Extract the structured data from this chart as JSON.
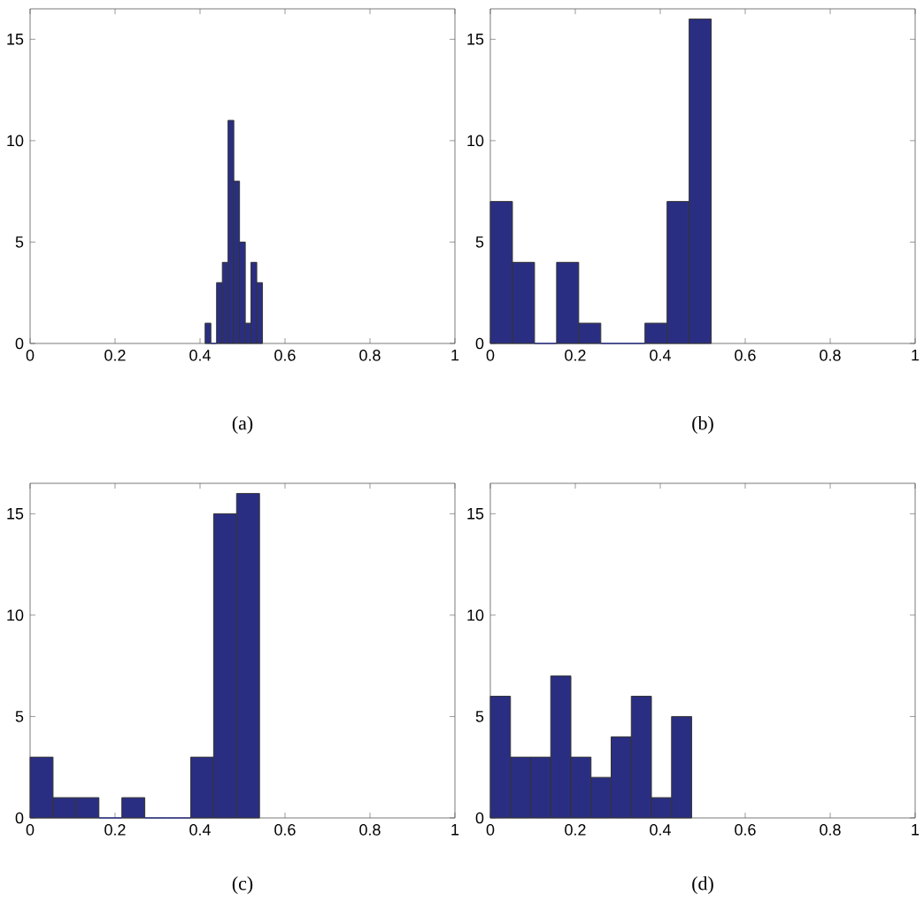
{
  "chart_data": [
    {
      "type": "histogram",
      "bins": [
        0.412,
        0.4255,
        0.439,
        0.4525,
        0.466,
        0.4795,
        0.493,
        0.5065,
        0.52,
        0.5335,
        0.547
      ],
      "values": [
        1,
        0,
        3,
        4,
        11,
        8,
        5,
        1,
        4,
        3
      ],
      "color": "#2a2e82",
      "xlim": [
        0,
        1
      ],
      "ylim": [
        0,
        16.5
      ],
      "xticks": [
        0,
        0.2,
        0.4,
        0.6,
        0.8,
        1
      ],
      "yticks": [
        0,
        5,
        10,
        15
      ],
      "annotations": [
        "(a)"
      ]
    },
    {
      "type": "histogram",
      "bins": [
        0,
        0.052,
        0.104,
        0.156,
        0.208,
        0.26,
        0.312,
        0.364,
        0.416,
        0.468,
        0.52
      ],
      "values": [
        7,
        4,
        0,
        4,
        1,
        0,
        0,
        1,
        7,
        16
      ],
      "color": "#2a2e82",
      "xlim": [
        0,
        1
      ],
      "ylim": [
        0,
        16.5
      ],
      "xticks": [
        0,
        0.2,
        0.4,
        0.6,
        0.8,
        1
      ],
      "yticks": [
        0,
        5,
        10,
        15
      ],
      "annotations": [
        "(b)"
      ]
    },
    {
      "type": "histogram",
      "bins": [
        0,
        0.054,
        0.108,
        0.162,
        0.216,
        0.27,
        0.324,
        0.378,
        0.432,
        0.486,
        0.54
      ],
      "values": [
        3,
        1,
        1,
        0,
        1,
        0,
        0,
        3,
        15,
        16
      ],
      "color": "#2a2e82",
      "xlim": [
        0,
        1
      ],
      "ylim": [
        0,
        16.5
      ],
      "xticks": [
        0,
        0.2,
        0.4,
        0.6,
        0.8,
        1
      ],
      "yticks": [
        0,
        5,
        10,
        15
      ],
      "annotations": [
        "(c)"
      ]
    },
    {
      "type": "histogram",
      "bins": [
        0,
        0.0474,
        0.0948,
        0.1422,
        0.1896,
        0.237,
        0.2844,
        0.3318,
        0.3792,
        0.4266,
        0.474
      ],
      "values": [
        6,
        3,
        3,
        7,
        3,
        2,
        4,
        6,
        1,
        5
      ],
      "color": "#2a2e82",
      "xlim": [
        0,
        1
      ],
      "ylim": [
        0,
        16.5
      ],
      "xticks": [
        0,
        0.2,
        0.4,
        0.6,
        0.8,
        1
      ],
      "yticks": [
        0,
        5,
        10,
        15
      ],
      "annotations": [
        "(d)"
      ]
    }
  ]
}
